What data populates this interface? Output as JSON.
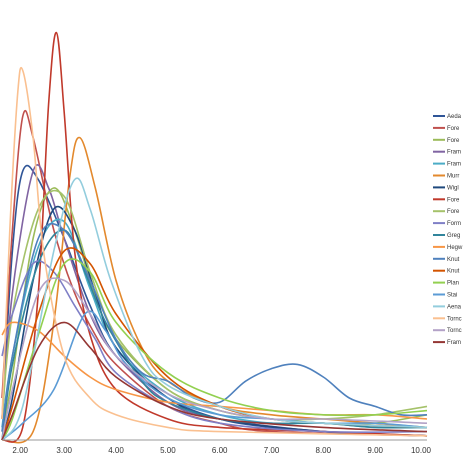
{
  "chart_data": {
    "type": "line",
    "title": "",
    "xlabel": "",
    "ylabel": "",
    "xlim": [
      1.8,
      10.0
    ],
    "ylim": [
      0,
      1.0
    ],
    "grid": false,
    "legend_position": "right",
    "x_ticks": [
      {
        "value": 2.0,
        "label": "2.00"
      },
      {
        "value": 3.0,
        "label": "3.00"
      },
      {
        "value": 4.0,
        "label": "4.00"
      },
      {
        "value": 5.0,
        "label": "5.00"
      },
      {
        "value": 6.0,
        "label": "6.00"
      },
      {
        "value": 7.0,
        "label": "7.00"
      },
      {
        "value": 8.0,
        "label": "8.00"
      },
      {
        "value": 9.0,
        "label": "9.00"
      },
      {
        "value": 10.0,
        "label": "10.00"
      }
    ],
    "series": [
      {
        "name": "Aeda",
        "color": "#2f5597",
        "values": [
          [
            1.8,
            0.05
          ],
          [
            2.0,
            0.45
          ],
          [
            2.2,
            0.64
          ],
          [
            2.5,
            0.62
          ],
          [
            3.0,
            0.48
          ],
          [
            3.5,
            0.32
          ],
          [
            4.0,
            0.2
          ],
          [
            5.0,
            0.1
          ],
          [
            6.0,
            0.05
          ],
          [
            7.0,
            0.03
          ],
          [
            8.0,
            0.02
          ],
          [
            10.0,
            0.01
          ]
        ]
      },
      {
        "name": "Fore",
        "color": "#c0504d",
        "values": [
          [
            1.8,
            0.1
          ],
          [
            2.0,
            0.5
          ],
          [
            2.2,
            0.77
          ],
          [
            2.4,
            0.72
          ],
          [
            2.8,
            0.5
          ],
          [
            3.2,
            0.35
          ],
          [
            3.6,
            0.25
          ],
          [
            4.0,
            0.18
          ],
          [
            5.0,
            0.08
          ],
          [
            6.0,
            0.04
          ],
          [
            7.0,
            0.02
          ],
          [
            10.0,
            0.01
          ]
        ]
      },
      {
        "name": "Fore",
        "color": "#9bbb59",
        "values": [
          [
            1.8,
            0.02
          ],
          [
            2.0,
            0.15
          ],
          [
            2.4,
            0.48
          ],
          [
            2.8,
            0.6
          ],
          [
            3.2,
            0.5
          ],
          [
            3.6,
            0.34
          ],
          [
            4.0,
            0.24
          ],
          [
            5.0,
            0.12
          ],
          [
            6.0,
            0.07
          ],
          [
            7.0,
            0.05
          ],
          [
            8.0,
            0.04
          ],
          [
            9.0,
            0.04
          ],
          [
            10.0,
            0.06
          ]
        ]
      },
      {
        "name": "Fram",
        "color": "#8064a2",
        "values": [
          [
            1.8,
            0.05
          ],
          [
            2.0,
            0.35
          ],
          [
            2.4,
            0.64
          ],
          [
            2.7,
            0.6
          ],
          [
            3.0,
            0.48
          ],
          [
            3.5,
            0.3
          ],
          [
            4.0,
            0.2
          ],
          [
            5.0,
            0.09
          ],
          [
            6.0,
            0.05
          ],
          [
            8.0,
            0.02
          ],
          [
            10.0,
            0.01
          ]
        ]
      },
      {
        "name": "Fram",
        "color": "#4bacc6",
        "values": [
          [
            1.8,
            0.03
          ],
          [
            2.0,
            0.2
          ],
          [
            2.5,
            0.46
          ],
          [
            3.0,
            0.52
          ],
          [
            3.5,
            0.36
          ],
          [
            4.0,
            0.22
          ],
          [
            5.0,
            0.11
          ],
          [
            6.0,
            0.06
          ],
          [
            7.0,
            0.04
          ],
          [
            8.0,
            0.04
          ],
          [
            9.0,
            0.03
          ],
          [
            10.0,
            0.03
          ]
        ]
      },
      {
        "name": "Murr",
        "color": "#e3892d",
        "values": [
          [
            1.8,
            0.0
          ],
          [
            2.4,
            0.02
          ],
          [
            2.8,
            0.28
          ],
          [
            3.1,
            0.62
          ],
          [
            3.3,
            0.72
          ],
          [
            3.6,
            0.6
          ],
          [
            4.0,
            0.38
          ],
          [
            4.5,
            0.22
          ],
          [
            5.0,
            0.14
          ],
          [
            6.0,
            0.08
          ],
          [
            7.0,
            0.06
          ],
          [
            8.0,
            0.05
          ],
          [
            9.0,
            0.04
          ],
          [
            10.0,
            0.03
          ]
        ]
      },
      {
        "name": "Wigl",
        "color": "#1f497d",
        "values": [
          [
            1.8,
            0.0
          ],
          [
            2.0,
            0.1
          ],
          [
            2.4,
            0.38
          ],
          [
            2.8,
            0.55
          ],
          [
            3.2,
            0.5
          ],
          [
            3.6,
            0.35
          ],
          [
            4.0,
            0.22
          ],
          [
            5.0,
            0.1
          ],
          [
            6.0,
            0.05
          ],
          [
            8.0,
            0.02
          ],
          [
            10.0,
            0.01
          ]
        ]
      },
      {
        "name": "Fore",
        "color": "#c0392b",
        "values": [
          [
            1.8,
            0.0
          ],
          [
            2.2,
            0.03
          ],
          [
            2.5,
            0.35
          ],
          [
            2.7,
            0.8
          ],
          [
            2.85,
            0.97
          ],
          [
            3.0,
            0.78
          ],
          [
            3.2,
            0.45
          ],
          [
            3.5,
            0.25
          ],
          [
            4.0,
            0.12
          ],
          [
            5.0,
            0.05
          ],
          [
            6.0,
            0.03
          ],
          [
            8.0,
            0.02
          ],
          [
            10.0,
            0.01
          ]
        ]
      },
      {
        "name": "Fore",
        "color": "#a5c26a",
        "values": [
          [
            1.8,
            0.05
          ],
          [
            2.0,
            0.3
          ],
          [
            2.5,
            0.55
          ],
          [
            3.0,
            0.58
          ],
          [
            3.5,
            0.4
          ],
          [
            4.0,
            0.25
          ],
          [
            5.0,
            0.12
          ],
          [
            6.0,
            0.07
          ],
          [
            7.0,
            0.05
          ],
          [
            8.0,
            0.05
          ],
          [
            9.0,
            0.06
          ],
          [
            10.0,
            0.08
          ]
        ]
      },
      {
        "name": "Form",
        "color": "#7f7fc6",
        "values": [
          [
            1.8,
            0.2
          ],
          [
            2.0,
            0.3
          ],
          [
            2.4,
            0.42
          ],
          [
            2.8,
            0.4
          ],
          [
            3.2,
            0.32
          ],
          [
            3.6,
            0.24
          ],
          [
            4.0,
            0.16
          ],
          [
            5.0,
            0.08
          ],
          [
            6.0,
            0.04
          ],
          [
            8.0,
            0.02
          ],
          [
            10.0,
            0.02
          ]
        ]
      },
      {
        "name": "Greg",
        "color": "#31859c",
        "values": [
          [
            1.8,
            0.0
          ],
          [
            2.0,
            0.18
          ],
          [
            2.5,
            0.42
          ],
          [
            3.0,
            0.5
          ],
          [
            3.4,
            0.4
          ],
          [
            3.8,
            0.28
          ],
          [
            4.5,
            0.14
          ],
          [
            5.0,
            0.09
          ],
          [
            6.0,
            0.05
          ],
          [
            7.0,
            0.04
          ],
          [
            8.0,
            0.04
          ],
          [
            9.0,
            0.03
          ],
          [
            10.0,
            0.03
          ]
        ]
      },
      {
        "name": "Hegw",
        "color": "#f79646",
        "values": [
          [
            1.8,
            0.25
          ],
          [
            2.0,
            0.28
          ],
          [
            2.5,
            0.26
          ],
          [
            3.0,
            0.2
          ],
          [
            3.5,
            0.15
          ],
          [
            4.0,
            0.12
          ],
          [
            5.0,
            0.09
          ],
          [
            6.0,
            0.08
          ],
          [
            7.0,
            0.07
          ],
          [
            8.0,
            0.06
          ],
          [
            9.0,
            0.06
          ],
          [
            10.0,
            0.05
          ]
        ]
      },
      {
        "name": "Knut",
        "color": "#4f81bd",
        "values": [
          [
            1.8,
            0.02
          ],
          [
            2.0,
            0.2
          ],
          [
            2.5,
            0.48
          ],
          [
            3.0,
            0.5
          ],
          [
            3.5,
            0.38
          ],
          [
            4.0,
            0.24
          ],
          [
            4.5,
            0.16
          ],
          [
            5.0,
            0.14
          ],
          [
            5.5,
            0.1
          ],
          [
            6.0,
            0.09
          ],
          [
            6.5,
            0.14
          ],
          [
            7.0,
            0.17
          ],
          [
            7.5,
            0.18
          ],
          [
            8.0,
            0.15
          ],
          [
            8.5,
            0.1
          ],
          [
            9.0,
            0.08
          ],
          [
            9.5,
            0.06
          ],
          [
            10.0,
            0.06
          ]
        ]
      },
      {
        "name": "Knut",
        "color": "#d35400",
        "values": [
          [
            1.8,
            0.0
          ],
          [
            2.0,
            0.08
          ],
          [
            2.5,
            0.3
          ],
          [
            3.0,
            0.45
          ],
          [
            3.5,
            0.42
          ],
          [
            4.0,
            0.3
          ],
          [
            5.0,
            0.15
          ],
          [
            6.0,
            0.08
          ],
          [
            7.0,
            0.05
          ],
          [
            8.0,
            0.04
          ],
          [
            10.0,
            0.03
          ]
        ]
      },
      {
        "name": "Plan",
        "color": "#92d050",
        "values": [
          [
            1.8,
            0.0
          ],
          [
            2.0,
            0.05
          ],
          [
            2.5,
            0.25
          ],
          [
            3.0,
            0.42
          ],
          [
            3.5,
            0.4
          ],
          [
            4.0,
            0.28
          ],
          [
            5.0,
            0.16
          ],
          [
            6.0,
            0.1
          ],
          [
            7.0,
            0.07
          ],
          [
            8.0,
            0.06
          ],
          [
            9.0,
            0.06
          ],
          [
            10.0,
            0.07
          ]
        ]
      },
      {
        "name": "Stai",
        "color": "#5b9bd5",
        "values": [
          [
            1.8,
            0.0
          ],
          [
            2.2,
            0.04
          ],
          [
            2.8,
            0.12
          ],
          [
            3.4,
            0.3
          ],
          [
            3.8,
            0.26
          ],
          [
            4.2,
            0.18
          ],
          [
            5.0,
            0.1
          ],
          [
            6.0,
            0.06
          ],
          [
            7.0,
            0.05
          ],
          [
            8.0,
            0.04
          ],
          [
            9.0,
            0.04
          ],
          [
            10.0,
            0.03
          ]
        ]
      },
      {
        "name": "Aena",
        "color": "#93cddd",
        "values": [
          [
            1.8,
            0.0
          ],
          [
            2.2,
            0.08
          ],
          [
            2.8,
            0.45
          ],
          [
            3.2,
            0.62
          ],
          [
            3.5,
            0.55
          ],
          [
            3.9,
            0.38
          ],
          [
            4.5,
            0.2
          ],
          [
            5.0,
            0.13
          ],
          [
            6.0,
            0.08
          ],
          [
            7.0,
            0.05
          ],
          [
            8.0,
            0.04
          ],
          [
            10.0,
            0.03
          ]
        ]
      },
      {
        "name": "Tornc",
        "color": "#fac090",
        "values": [
          [
            1.8,
            0.05
          ],
          [
            1.95,
            0.5
          ],
          [
            2.1,
            0.82
          ],
          [
            2.2,
            0.88
          ],
          [
            2.4,
            0.72
          ],
          [
            2.6,
            0.45
          ],
          [
            3.0,
            0.2
          ],
          [
            3.5,
            0.1
          ],
          [
            4.0,
            0.06
          ],
          [
            5.0,
            0.03
          ],
          [
            6.0,
            0.02
          ],
          [
            10.0,
            0.01
          ]
        ]
      },
      {
        "name": "Tornc",
        "color": "#b3a2c7",
        "values": [
          [
            1.8,
            0.0
          ],
          [
            2.0,
            0.12
          ],
          [
            2.5,
            0.35
          ],
          [
            3.0,
            0.38
          ],
          [
            3.5,
            0.3
          ],
          [
            4.0,
            0.2
          ],
          [
            5.0,
            0.11
          ],
          [
            6.0,
            0.07
          ],
          [
            7.0,
            0.05
          ],
          [
            8.0,
            0.05
          ],
          [
            10.0,
            0.04
          ]
        ]
      },
      {
        "name": "Fram",
        "color": "#943634",
        "values": [
          [
            1.8,
            0.0
          ],
          [
            2.0,
            0.06
          ],
          [
            2.5,
            0.22
          ],
          [
            3.0,
            0.28
          ],
          [
            3.5,
            0.22
          ],
          [
            4.0,
            0.15
          ],
          [
            5.0,
            0.08
          ],
          [
            6.0,
            0.05
          ],
          [
            8.0,
            0.03
          ],
          [
            10.0,
            0.02
          ]
        ]
      }
    ]
  }
}
